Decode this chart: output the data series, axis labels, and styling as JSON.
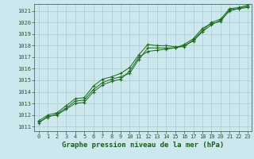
{
  "title": "Graphe pression niveau de la mer (hPa)",
  "bg_color": "#cce8ee",
  "grid_color": "#aacccc",
  "line_color": "#1a6b1a",
  "marker_color": "#1a6b1a",
  "xlim_min": -0.5,
  "xlim_max": 23.4,
  "ylim_min": 1010.6,
  "ylim_max": 1021.6,
  "xticks": [
    0,
    1,
    2,
    3,
    4,
    5,
    6,
    7,
    8,
    9,
    10,
    11,
    12,
    13,
    14,
    15,
    16,
    17,
    18,
    19,
    20,
    21,
    22,
    23
  ],
  "yticks": [
    1011,
    1012,
    1013,
    1014,
    1015,
    1016,
    1017,
    1018,
    1019,
    1020,
    1021
  ],
  "series1_x": [
    0,
    1,
    2,
    3,
    4,
    5,
    6,
    7,
    8,
    9,
    10,
    11,
    12,
    13,
    14,
    15,
    16,
    17,
    18,
    19,
    20,
    21,
    22,
    23
  ],
  "series1_y": [
    1011.4,
    1011.8,
    1012.1,
    1012.6,
    1013.2,
    1013.3,
    1014.2,
    1014.8,
    1015.1,
    1015.3,
    1015.6,
    1016.8,
    1017.8,
    1017.8,
    1017.8,
    1017.8,
    1018.0,
    1018.4,
    1019.2,
    1019.8,
    1020.2,
    1021.0,
    1021.2,
    1021.3
  ],
  "series2_x": [
    0,
    1,
    2,
    3,
    4,
    5,
    6,
    7,
    8,
    9,
    10,
    11,
    12,
    13,
    14,
    15,
    16,
    17,
    18,
    19,
    20,
    21,
    22,
    23
  ],
  "series2_y": [
    1011.5,
    1012.0,
    1012.2,
    1012.8,
    1013.4,
    1013.5,
    1014.5,
    1015.1,
    1015.3,
    1015.6,
    1016.1,
    1017.2,
    1018.1,
    1018.0,
    1018.0,
    1017.9,
    1017.9,
    1018.5,
    1019.3,
    1020.0,
    1020.3,
    1021.2,
    1021.3,
    1021.5
  ],
  "series3_x": [
    0,
    1,
    2,
    3,
    4,
    5,
    6,
    7,
    8,
    9,
    10,
    11,
    12,
    13,
    14,
    15,
    16,
    17,
    18,
    19,
    20,
    21,
    22,
    23
  ],
  "series3_y": [
    1011.3,
    1011.9,
    1012.0,
    1012.5,
    1013.0,
    1013.1,
    1014.0,
    1014.6,
    1014.9,
    1015.1,
    1015.8,
    1017.0,
    1017.5,
    1017.6,
    1017.7,
    1017.8,
    1018.1,
    1018.6,
    1019.5,
    1019.9,
    1020.1,
    1021.1,
    1021.2,
    1021.4
  ]
}
